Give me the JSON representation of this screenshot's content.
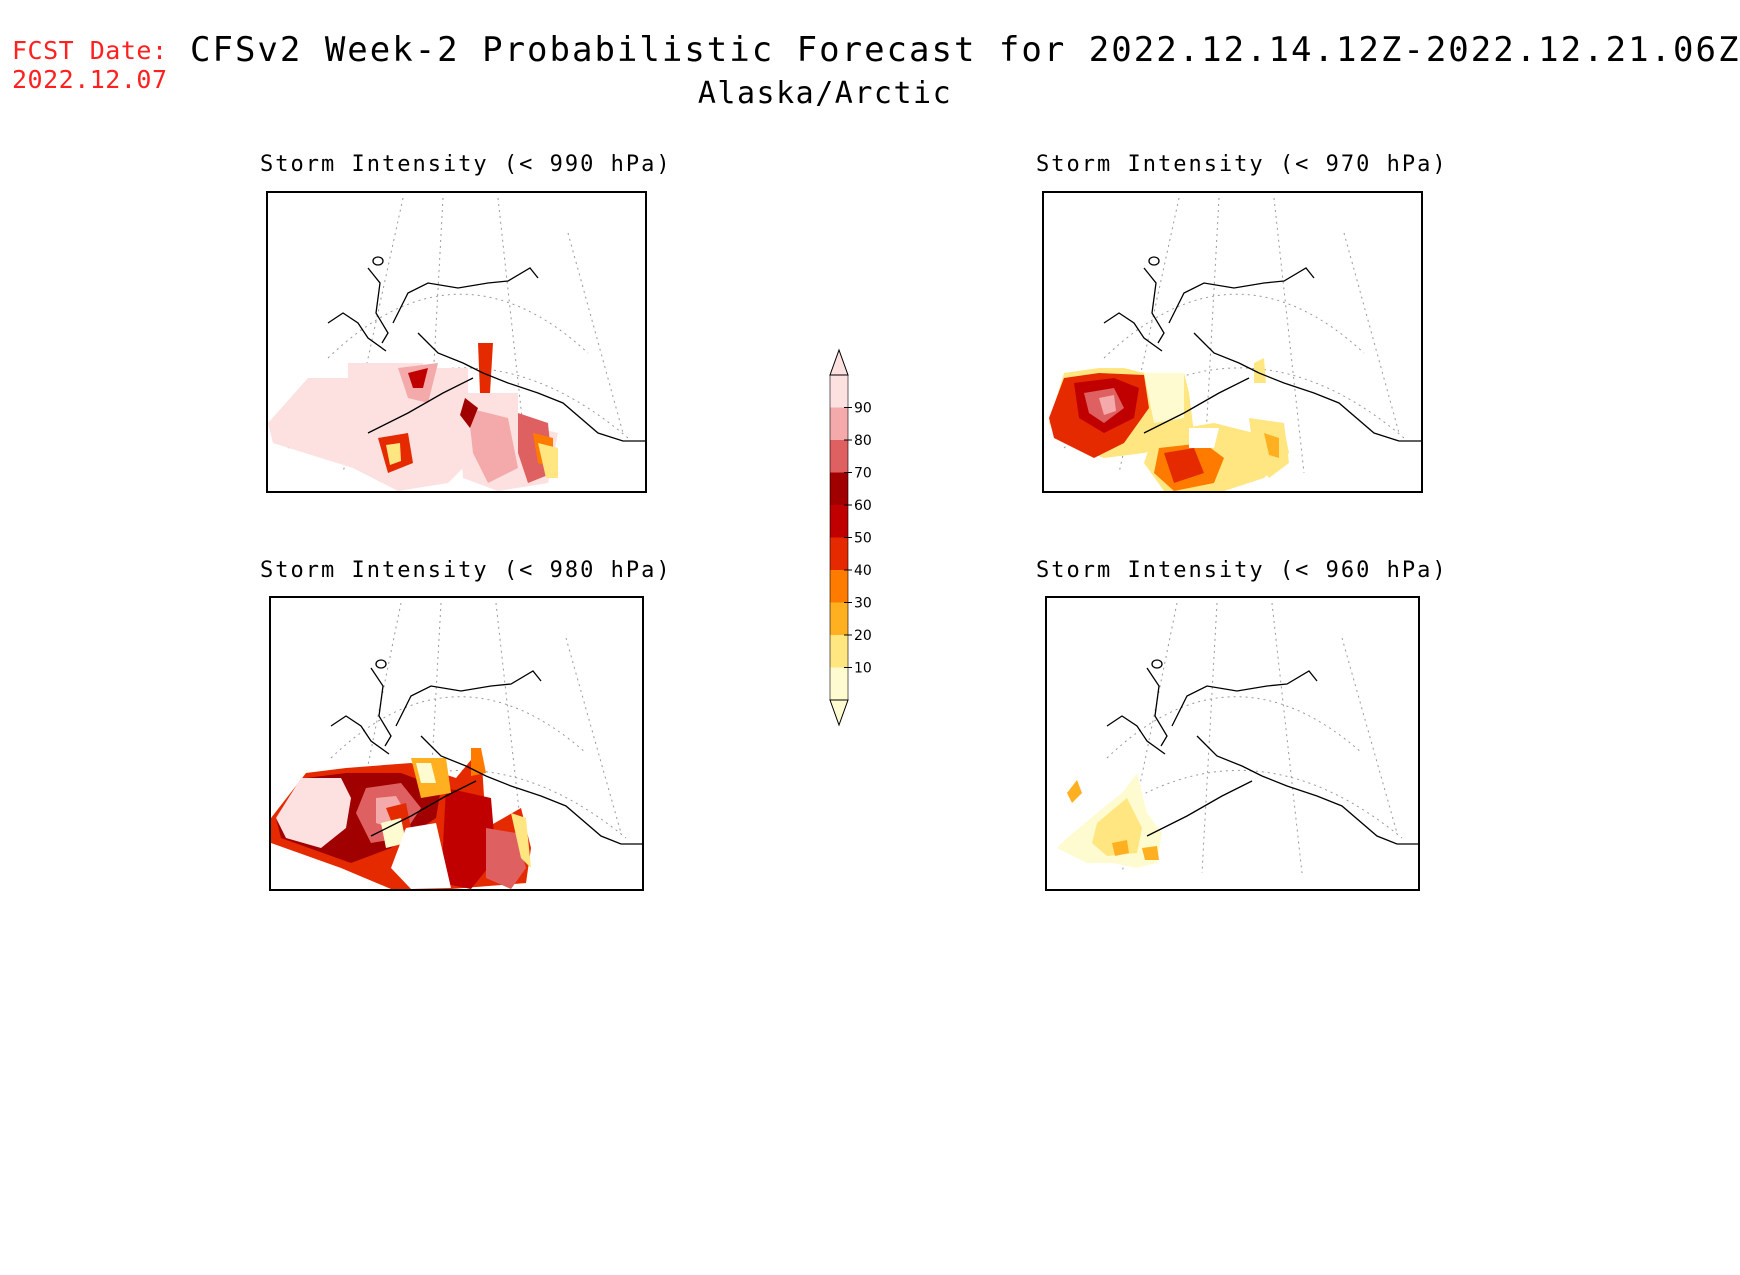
{
  "header": {
    "fcst_label": "FCST Date:",
    "fcst_date": "2022.12.07",
    "title": "CFSv2 Week-2 Probabilistic Forecast for 2022.12.14.12Z-2022.12.21.06Z",
    "subtitle": "Alaska/Arctic"
  },
  "panels": [
    {
      "title": "Storm Intensity (< 990 hPa)"
    },
    {
      "title": "Storm Intensity (< 970 hPa)"
    },
    {
      "title": "Storm Intensity (< 980 hPa)"
    },
    {
      "title": "Storm Intensity (< 960 hPa)"
    }
  ],
  "colorbar": {
    "levels": [
      "10",
      "20",
      "30",
      "40",
      "50",
      "60",
      "70",
      "80",
      "90"
    ],
    "colors": [
      "#fffbd0",
      "#ffe680",
      "#ffb020",
      "#ff7b00",
      "#e62a00",
      "#c00000",
      "#a00000",
      "#de6060",
      "#f4aaaa",
      "#fde0e0"
    ]
  }
}
